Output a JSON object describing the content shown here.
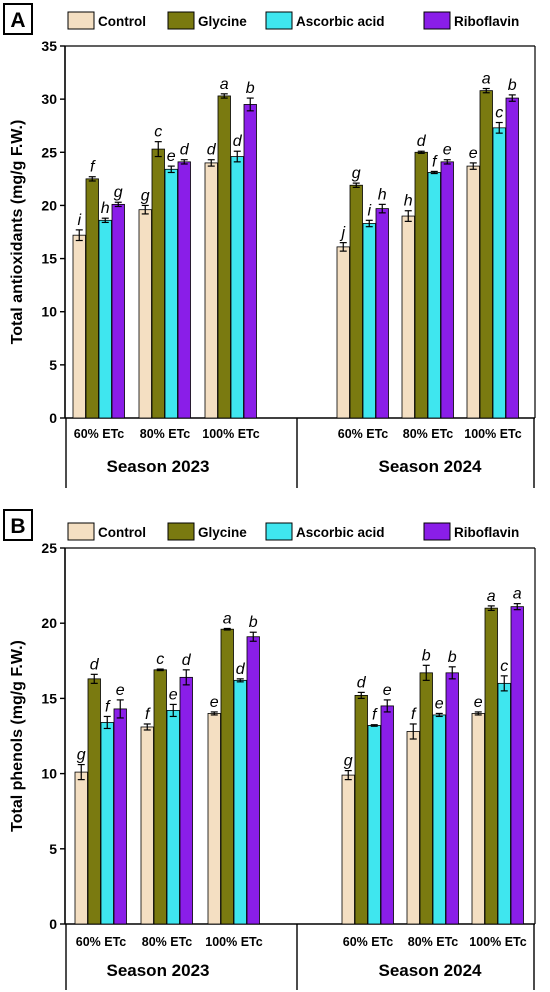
{
  "colors": {
    "Control": "#f4dfc2",
    "Glycine": "#7a7a10",
    "Ascorbic acid": "#3fe6ef",
    "Riboflavin": "#8a1ee8"
  },
  "chart_data": [
    {
      "panel_label": "A",
      "type": "bar",
      "ylabel": "Total antioxidants (mg/g F.W.)",
      "ylim": [
        0,
        35
      ],
      "yticks": [
        0,
        5,
        10,
        15,
        20,
        25,
        30,
        35
      ],
      "legend": [
        "Control",
        "Glycine",
        "Ascorbic acid",
        "Riboflavin"
      ],
      "groups": [
        {
          "season": "Season 2023",
          "categories": [
            "60% ETc",
            "80% ETc",
            "100% ETc"
          ],
          "series": [
            {
              "name": "Control",
              "values": [
                17.2,
                19.6,
                24.0
              ],
              "errors": [
                0.5,
                0.4,
                0.3
              ],
              "letters": [
                "i",
                "g",
                "d"
              ]
            },
            {
              "name": "Glycine",
              "values": [
                22.5,
                25.3,
                30.3
              ],
              "errors": [
                0.2,
                0.7,
                0.2
              ],
              "letters": [
                "f",
                "c",
                "a"
              ]
            },
            {
              "name": "Ascorbic acid",
              "values": [
                18.6,
                23.4,
                24.6
              ],
              "errors": [
                0.2,
                0.3,
                0.5
              ],
              "letters": [
                "h",
                "e",
                "d"
              ]
            },
            {
              "name": "Riboflavin",
              "values": [
                20.1,
                24.1,
                29.5
              ],
              "errors": [
                0.2,
                0.2,
                0.6
              ],
              "letters": [
                "g",
                "d",
                "b"
              ]
            }
          ]
        },
        {
          "season": "Season 2024",
          "categories": [
            "60% ETc",
            "80% ETc",
            "100% ETc"
          ],
          "series": [
            {
              "name": "Control",
              "values": [
                16.1,
                19.0,
                23.7
              ],
              "errors": [
                0.4,
                0.5,
                0.3
              ],
              "letters": [
                "j",
                "h",
                "e"
              ]
            },
            {
              "name": "Glycine",
              "values": [
                21.9,
                25.0,
                30.8
              ],
              "errors": [
                0.2,
                0.1,
                0.2
              ],
              "letters": [
                "g",
                "d",
                "a"
              ]
            },
            {
              "name": "Ascorbic acid",
              "values": [
                18.3,
                23.1,
                27.3
              ],
              "errors": [
                0.3,
                0.1,
                0.5
              ],
              "letters": [
                "i",
                "f",
                "c"
              ]
            },
            {
              "name": "Riboflavin",
              "values": [
                19.7,
                24.1,
                30.1
              ],
              "errors": [
                0.4,
                0.2,
                0.3
              ],
              "letters": [
                "h",
                "e",
                "b"
              ]
            }
          ]
        }
      ]
    },
    {
      "panel_label": "B",
      "type": "bar",
      "ylabel": "Total phenols (mg/g F.W.)",
      "ylim": [
        0,
        25
      ],
      "yticks": [
        0,
        5,
        10,
        15,
        20,
        25
      ],
      "legend": [
        "Control",
        "Glycine",
        "Ascorbic acid",
        "Riboflavin"
      ],
      "groups": [
        {
          "season": "Season 2023",
          "categories": [
            "60% ETc",
            "80% ETc",
            "100% ETc"
          ],
          "series": [
            {
              "name": "Control",
              "values": [
                10.1,
                13.1,
                14.0
              ],
              "errors": [
                0.5,
                0.2,
                0.1
              ],
              "letters": [
                "g",
                "f",
                "e"
              ]
            },
            {
              "name": "Glycine",
              "values": [
                16.3,
                16.9,
                19.6
              ],
              "errors": [
                0.3,
                0.05,
                0.05
              ],
              "letters": [
                "d",
                "c",
                "a"
              ]
            },
            {
              "name": "Ascorbic acid",
              "values": [
                13.4,
                14.2,
                16.2
              ],
              "errors": [
                0.4,
                0.4,
                0.1
              ],
              "letters": [
                "f",
                "e",
                "d"
              ]
            },
            {
              "name": "Riboflavin",
              "values": [
                14.3,
                16.4,
                19.1
              ],
              "errors": [
                0.6,
                0.5,
                0.3
              ],
              "letters": [
                "e",
                "d",
                "b"
              ]
            }
          ]
        },
        {
          "season": "Season 2024",
          "categories": [
            "60% ETc",
            "80% ETc",
            "100% ETc"
          ],
          "series": [
            {
              "name": "Control",
              "values": [
                9.9,
                12.8,
                14.0
              ],
              "errors": [
                0.3,
                0.5,
                0.1
              ],
              "letters": [
                "g",
                "f",
                "e"
              ]
            },
            {
              "name": "Glycine",
              "values": [
                15.2,
                16.7,
                21.0
              ],
              "errors": [
                0.2,
                0.5,
                0.15
              ],
              "letters": [
                "d",
                "b",
                "a"
              ]
            },
            {
              "name": "Ascorbic acid",
              "values": [
                13.2,
                13.9,
                16.0
              ],
              "errors": [
                0.05,
                0.1,
                0.5
              ],
              "letters": [
                "f",
                "e",
                "c"
              ]
            },
            {
              "name": "Riboflavin",
              "values": [
                14.5,
                16.7,
                21.1
              ],
              "errors": [
                0.4,
                0.4,
                0.2
              ],
              "letters": [
                "e",
                "b",
                "a"
              ]
            }
          ]
        }
      ]
    }
  ]
}
